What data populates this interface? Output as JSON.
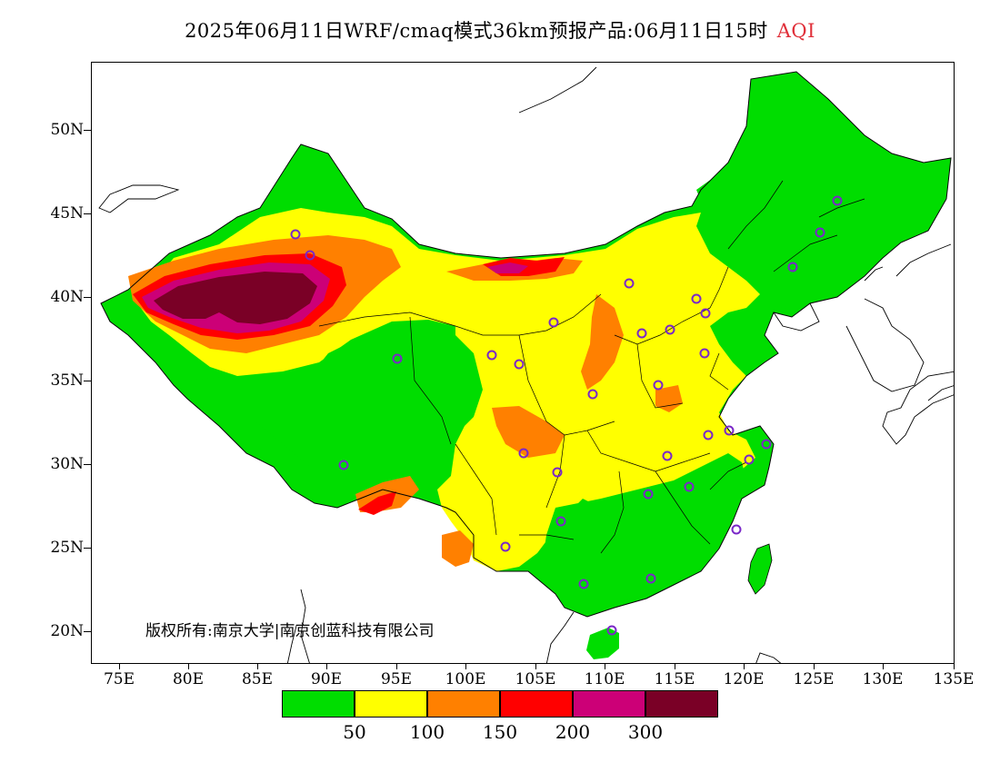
{
  "title": {
    "main": "2025年06月11日WRF/cmaq模式36km预报产品:06月11日15时",
    "variable": "AQI"
  },
  "axes": {
    "lat_labels": [
      "50N",
      "45N",
      "40N",
      "35N",
      "30N",
      "25N",
      "20N"
    ],
    "lon_labels": [
      "75E",
      "80E",
      "85E",
      "90E",
      "95E",
      "100E",
      "105E",
      "110E",
      "115E",
      "120E",
      "125E",
      "130E",
      "135E"
    ]
  },
  "copyright": "版权所有:南京大学|南京创蓝科技有限公司",
  "legend": {
    "colors": [
      "#00dd00",
      "#ffff00",
      "#ff8000",
      "#ff0000",
      "#cc0077",
      "#7a0026"
    ],
    "labels": [
      "50",
      "100",
      "150",
      "200",
      "300"
    ]
  },
  "colors": {
    "good": "#00dd00",
    "moderate": "#ffff00",
    "sensitive": "#ff8000",
    "unhealthy": "#ff0000",
    "very_unhealthy": "#cc0077",
    "hazardous": "#7a0026",
    "station_marker": "#7a28c8"
  }
}
